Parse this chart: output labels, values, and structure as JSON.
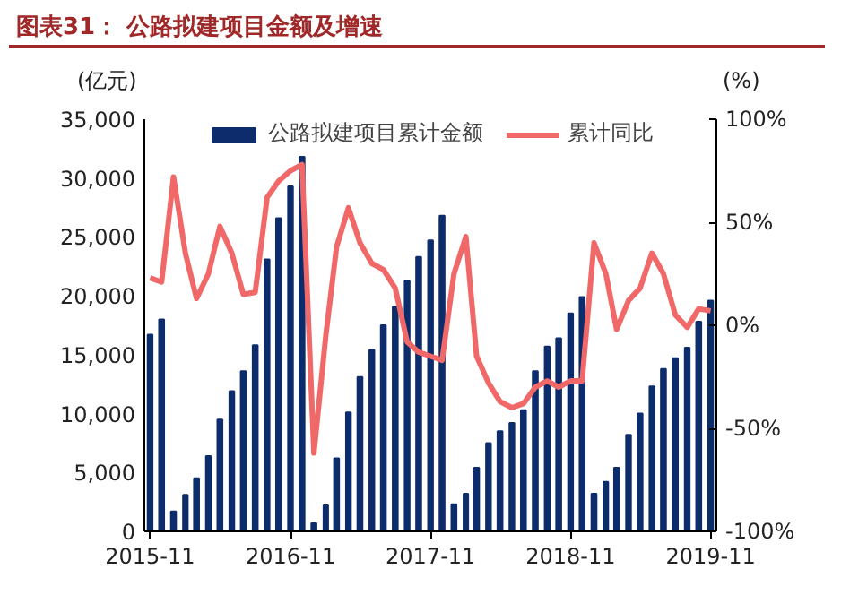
{
  "chart_data": {
    "type": "bar",
    "title": "图表31： 公路拟建项目金额及增速",
    "ylabel": "(亿元)",
    "y2label": "(%)",
    "x": [
      "2015-11",
      "2015-12",
      "2016-01",
      "2016-02",
      "2016-03",
      "2016-04",
      "2016-05",
      "2016-06",
      "2016-07",
      "2016-08",
      "2016-09",
      "2016-10",
      "2016-11",
      "2016-12",
      "2017-01",
      "2017-02",
      "2017-03",
      "2017-04",
      "2017-05",
      "2017-06",
      "2017-07",
      "2017-08",
      "2017-09",
      "2017-10",
      "2017-11",
      "2017-12",
      "2018-01",
      "2018-02",
      "2018-03",
      "2018-04",
      "2018-05",
      "2018-06",
      "2018-07",
      "2018-08",
      "2018-09",
      "2018-10",
      "2018-11",
      "2018-12",
      "2019-01",
      "2019-02",
      "2019-03",
      "2019-04",
      "2019-05",
      "2019-06",
      "2019-07",
      "2019-08",
      "2019-09",
      "2019-10",
      "2019-11"
    ],
    "series": [
      {
        "name": "公路拟建项目累计金额",
        "color": "#0d2c6c",
        "values": [
          16700,
          18000,
          1700,
          3100,
          4500,
          6400,
          9500,
          11900,
          13600,
          15800,
          23100,
          26600,
          29300,
          31800,
          700,
          2200,
          6200,
          10100,
          13100,
          15400,
          17500,
          19100,
          21300,
          23300,
          24700,
          26800,
          2300,
          3200,
          5400,
          7500,
          8500,
          9200,
          10300,
          13600,
          15700,
          16400,
          18500,
          19900,
          3200,
          4200,
          5400,
          8200,
          10000,
          12300,
          13800,
          14700,
          15600,
          17800,
          19600
        ]
      },
      {
        "name": "累计同比",
        "type": "line",
        "axis": "y2",
        "color": "#f06868",
        "values": [
          23,
          21,
          72,
          35,
          13,
          25,
          48,
          35,
          15,
          16,
          62,
          70,
          75,
          78,
          -62,
          -5,
          38,
          57,
          40,
          30,
          27,
          18,
          -8,
          -13,
          -15,
          -17,
          25,
          43,
          -15,
          -28,
          -37,
          -40,
          -38,
          -30,
          -27,
          -30,
          -27,
          -27,
          40,
          25,
          -2,
          12,
          18,
          35,
          25,
          5,
          -1,
          8,
          7
        ]
      }
    ],
    "xlim": [
      "2015-10-17",
      "2019-11-16"
    ],
    "xticks": [
      "2015-11",
      "2016-11",
      "2017-11",
      "2018-11",
      "2019-11"
    ],
    "ylim": [
      0,
      35000
    ],
    "yticks": [
      {
        "value": 0,
        "label": "0"
      },
      {
        "value": 5000,
        "label": "5,000"
      },
      {
        "value": 10000,
        "label": "10,000"
      },
      {
        "value": 15000,
        "label": "15,000"
      },
      {
        "value": 20000,
        "label": "20,000"
      },
      {
        "value": 25000,
        "label": "25,000"
      },
      {
        "value": 30000,
        "label": "30,000"
      },
      {
        "value": 35000,
        "label": "35,000"
      }
    ],
    "y2lim": [
      -100,
      100
    ],
    "y2ticks": [
      {
        "value": -100,
        "label": "-100%"
      },
      {
        "value": -50,
        "label": "-50%"
      },
      {
        "value": 0,
        "label": "0%"
      },
      {
        "value": 50,
        "label": "50%"
      },
      {
        "value": 100,
        "label": "100%"
      }
    ],
    "grid": false,
    "legend": "top",
    "line_style": "solid"
  }
}
